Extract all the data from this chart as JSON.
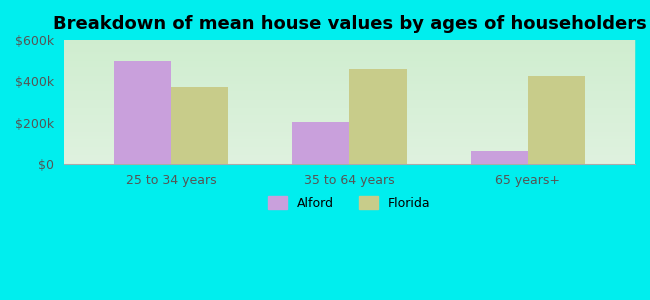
{
  "title": "Breakdown of mean house values by ages of householders",
  "categories": [
    "25 to 34 years",
    "35 to 64 years",
    "65 years+"
  ],
  "alford_values": [
    500000,
    205000,
    65000
  ],
  "florida_values": [
    375000,
    462000,
    425000
  ],
  "alford_color": "#c9a0dc",
  "florida_color": "#c8cc8a",
  "background_outer": "#00eeee",
  "ylim": [
    0,
    600000
  ],
  "yticks": [
    0,
    200000,
    400000,
    600000
  ],
  "ytick_labels": [
    "$0",
    "$200k",
    "$400k",
    "$600k"
  ],
  "legend_labels": [
    "Alford",
    "Florida"
  ],
  "bar_width": 0.32,
  "title_fontsize": 13,
  "tick_fontsize": 9,
  "legend_fontsize": 9
}
